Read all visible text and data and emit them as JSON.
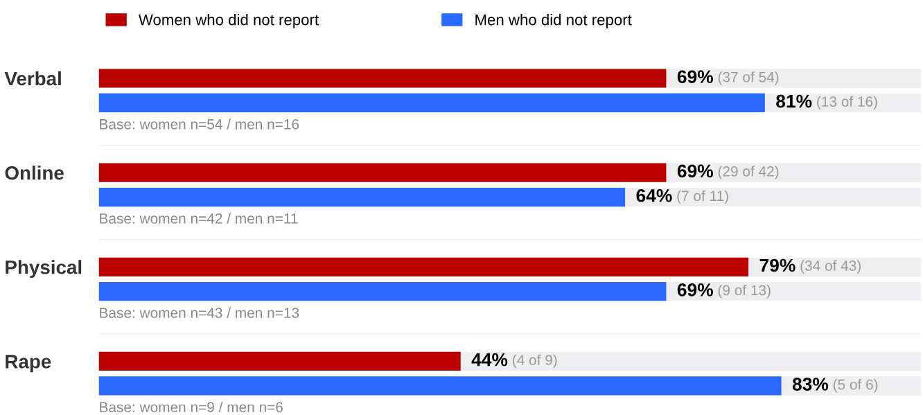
{
  "chart_data": {
    "type": "bar",
    "orientation": "horizontal",
    "categories": [
      "Verbal",
      "Online",
      "Physical",
      "Rape"
    ],
    "series": [
      {
        "name": "Women who did not report",
        "color": "#bb0000",
        "values": [
          69,
          69,
          79,
          44
        ],
        "value_labels": [
          "69% (37 of 54)",
          "69% (29 of 42)",
          "79% (34 of 43)",
          "44% (4 of 9)"
        ]
      },
      {
        "name": "Men who did not report",
        "color": "#2a69ff",
        "values": [
          81,
          64,
          69,
          83
        ],
        "value_labels": [
          "81% (13 of 16)",
          "64% (7 of 11)",
          "69% (9 of 13)",
          "83% (5 of 6)"
        ]
      }
    ],
    "xlim": [
      0,
      100
    ],
    "tick_labels": "y",
    "legend": "top",
    "grid": false,
    "annotations": [
      "Base: women n=54 / men n=16",
      "Base: women n=42 / men n=11",
      "Base: women n=43 / men n=13",
      "Base: women n=9 / men n=6"
    ]
  }
}
